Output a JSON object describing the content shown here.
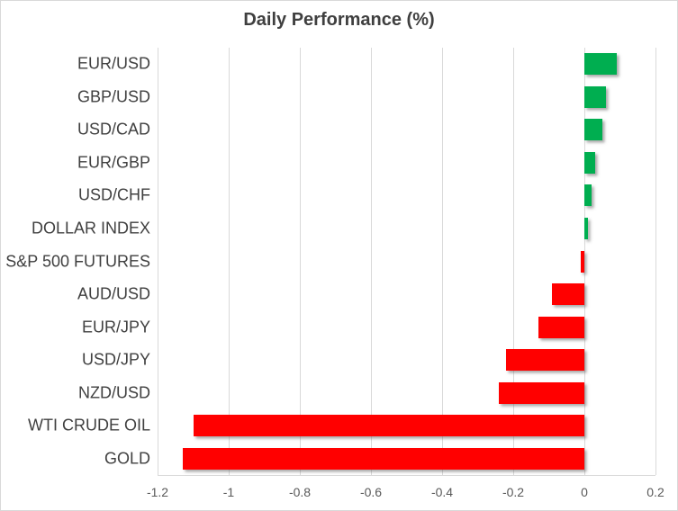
{
  "chart_data": {
    "type": "bar",
    "orientation": "horizontal",
    "title": "Daily Performance (%)",
    "categories": [
      "EUR/USD",
      "GBP/USD",
      "USD/CAD",
      "EUR/GBP",
      "USD/CHF",
      "DOLLAR INDEX",
      "S&P 500 FUTURES",
      "AUD/USD",
      "EUR/JPY",
      "USD/JPY",
      "NZD/USD",
      "WTI CRUDE OIL",
      "GOLD"
    ],
    "values": [
      0.09,
      0.06,
      0.05,
      0.03,
      0.02,
      0.01,
      -0.01,
      -0.09,
      -0.13,
      -0.22,
      -0.24,
      -1.1,
      -1.13
    ],
    "xlabel": "",
    "ylabel": "",
    "xlim": [
      -1.2,
      0.2
    ],
    "xticks": [
      -1.2,
      -1,
      -0.8,
      -0.6,
      -0.4,
      -0.2,
      0,
      0.2
    ],
    "xtick_labels": [
      "-1.2",
      "-1",
      "-0.8",
      "-0.6",
      "-0.4",
      "-0.2",
      "0",
      "0.2"
    ],
    "grid": true,
    "legend": "none",
    "positive_color": "#00AE50",
    "negative_color": "#ff0000",
    "gridline_color": "#d9d9d9",
    "title_color": "#3f3f3f",
    "category_label_color": "#404040",
    "tick_label_color": "#595959"
  }
}
